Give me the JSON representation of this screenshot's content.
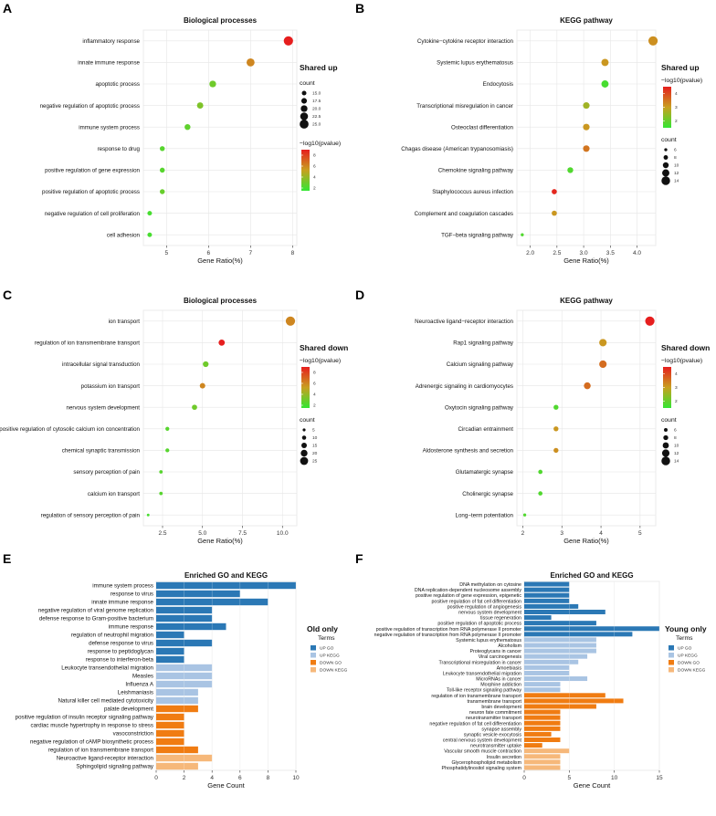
{
  "colors": {
    "grad_low": "#33e633",
    "grad_mid": "#c8a020",
    "grad_high": "#e61e1e",
    "up_go": "#2b78b5",
    "up_kegg": "#a9c4e3",
    "down_go": "#f07c12",
    "down_kegg": "#f6b87a",
    "grid": "#e6e6e6"
  },
  "panels": [
    {
      "letter": "A"
    },
    {
      "letter": "B"
    },
    {
      "letter": "C"
    },
    {
      "letter": "D"
    },
    {
      "letter": "E"
    },
    {
      "letter": "F"
    }
  ],
  "chart_data": [
    {
      "id": "A",
      "type": "scatter",
      "title": "Biological processes",
      "xlabel": "Gene Ratio(%)",
      "ylabel": "",
      "xlim": [
        4.45,
        8.1
      ],
      "xticks": [
        5,
        6,
        7,
        8
      ],
      "legend_title": "Shared up",
      "size_legend": {
        "title": "count",
        "values": [
          15.0,
          17.5,
          20.0,
          22.5,
          25.0
        ],
        "labels": [
          "15.0",
          "17.5",
          "20.0",
          "22.5",
          "25.0"
        ],
        "range": [
          10,
          26
        ]
      },
      "color_legend": {
        "title": "−log10(pvalue)",
        "ticks": [
          2,
          4,
          6,
          8
        ],
        "range": [
          1.5,
          9
        ]
      },
      "points": [
        {
          "term": "inflammatory response",
          "x": 7.9,
          "count": 26,
          "pval": 9.0
        },
        {
          "term": "innate immune response",
          "x": 7.0,
          "count": 23,
          "pval": 6.0
        },
        {
          "term": "apoptotic process",
          "x": 6.1,
          "count": 20,
          "pval": 3.0
        },
        {
          "term": "negative regulation of apoptotic process",
          "x": 5.8,
          "count": 19,
          "pval": 3.4
        },
        {
          "term": "immune system process",
          "x": 5.5,
          "count": 18,
          "pval": 2.6
        },
        {
          "term": "response to drug",
          "x": 4.9,
          "count": 16,
          "pval": 2.4
        },
        {
          "term": "positive regulation of gene expression",
          "x": 4.9,
          "count": 16,
          "pval": 2.4
        },
        {
          "term": "positive regulation of apoptotic process",
          "x": 4.9,
          "count": 16,
          "pval": 2.8
        },
        {
          "term": "negative regulation of cell proliferation",
          "x": 4.6,
          "count": 15,
          "pval": 2.0
        },
        {
          "term": "cell adhesion",
          "x": 4.6,
          "count": 15,
          "pval": 2.0
        }
      ]
    },
    {
      "id": "B",
      "type": "scatter",
      "title": "KEGG pathway",
      "xlabel": "Gene Ratio(%)",
      "ylabel": "",
      "xlim": [
        1.75,
        4.35
      ],
      "xticks": [
        2.0,
        2.5,
        3.0,
        3.5,
        4.0
      ],
      "xticklabels": [
        "2.0",
        "2.5",
        "3.0",
        "3.5",
        "4.0"
      ],
      "legend_title": "Shared up",
      "size_legend": {
        "title": "count",
        "values": [
          6,
          8,
          10,
          12,
          14
        ],
        "labels": [
          "6",
          "8",
          "10",
          "12",
          "14"
        ],
        "range": [
          5,
          15
        ]
      },
      "color_legend": {
        "title": "−log10(pvalue)",
        "ticks": [
          2,
          3,
          4
        ],
        "range": [
          1.5,
          4.5
        ]
      },
      "points": [
        {
          "term": "Cytokine−cytokine receptor interaction",
          "x": 4.3,
          "count": 15,
          "pval": 3.2
        },
        {
          "term": "Systemic lupus erythematosus",
          "x": 3.4,
          "count": 12,
          "pval": 3.1
        },
        {
          "term": "Endocytosis",
          "x": 3.4,
          "count": 12,
          "pval": 1.7
        },
        {
          "term": "Transcriptional misregulation in cancer",
          "x": 3.05,
          "count": 11,
          "pval": 2.6
        },
        {
          "term": "Osteoclast differentiation",
          "x": 3.05,
          "count": 11,
          "pval": 3.1
        },
        {
          "term": "Chagas disease (American trypanosomiasis)",
          "x": 3.05,
          "count": 11,
          "pval": 3.5
        },
        {
          "term": "Chemokine signaling pathway",
          "x": 2.75,
          "count": 10,
          "pval": 1.8
        },
        {
          "term": "Staphylococcus aureus infection",
          "x": 2.45,
          "count": 9,
          "pval": 4.4
        },
        {
          "term": "Complement and coagulation cascades",
          "x": 2.45,
          "count": 9,
          "pval": 3.1
        },
        {
          "term": "TGF−beta signaling pathway",
          "x": 1.85,
          "count": 6,
          "pval": 1.8
        }
      ]
    },
    {
      "id": "C",
      "type": "scatter",
      "title": "Biological processes",
      "xlabel": "Gene Ratio(%)",
      "ylabel": "",
      "xlim": [
        1.3,
        10.9
      ],
      "xticks": [
        2.5,
        5.0,
        7.5,
        10.0
      ],
      "xticklabels": [
        "2.5",
        "5.0",
        "7.5",
        "10.0"
      ],
      "legend_title": "Shared down",
      "size_legend": {
        "title": "count",
        "values": [
          5,
          10,
          15,
          20,
          25
        ],
        "labels": [
          "5",
          "10",
          "15",
          "20",
          "25"
        ],
        "range": [
          3,
          30
        ]
      },
      "color_legend": {
        "title": "−log10(pvalue)",
        "ticks": [
          2,
          4,
          6,
          8
        ],
        "range": [
          1.5,
          9
        ]
      },
      "points": [
        {
          "term": "ion transport",
          "x": 10.5,
          "count": 30,
          "pval": 6.0
        },
        {
          "term": "regulation of ion transmembrane transport",
          "x": 6.2,
          "count": 18,
          "pval": 9.0
        },
        {
          "term": "intracellular signal transduction",
          "x": 5.2,
          "count": 16,
          "pval": 3.0
        },
        {
          "term": "potassium ion transport",
          "x": 5.0,
          "count": 15,
          "pval": 6.0
        },
        {
          "term": "nervous system development",
          "x": 4.5,
          "count": 14,
          "pval": 3.0
        },
        {
          "term": "positive regulation of cytosolic calcium ion concentration",
          "x": 2.8,
          "count": 9,
          "pval": 2.4
        },
        {
          "term": "chemical synaptic transmission",
          "x": 2.8,
          "count": 9,
          "pval": 2.4
        },
        {
          "term": "sensory perception of pain",
          "x": 2.4,
          "count": 7,
          "pval": 2.4
        },
        {
          "term": "calcium ion transport",
          "x": 2.4,
          "count": 7,
          "pval": 2.4
        },
        {
          "term": "regulation of sensory perception of pain",
          "x": 1.6,
          "count": 4,
          "pval": 2.0
        }
      ]
    },
    {
      "id": "D",
      "type": "scatter",
      "title": "KEGG pathway",
      "xlabel": "Gene Ratio(%)",
      "ylabel": "",
      "xlim": [
        1.85,
        5.4
      ],
      "xticks": [
        2,
        3,
        4,
        5
      ],
      "legend_title": "Shared down",
      "size_legend": {
        "title": "count",
        "values": [
          6,
          8,
          10,
          12,
          14
        ],
        "labels": [
          "6",
          "8",
          "10",
          "12",
          "14"
        ],
        "range": [
          4,
          15
        ]
      },
      "color_legend": {
        "title": "−log10(pvalue)",
        "ticks": [
          2,
          3,
          4
        ],
        "range": [
          1.5,
          4.5
        ]
      },
      "points": [
        {
          "term": "Neuroactive ligand−receptor interaction",
          "x": 5.25,
          "count": 15,
          "pval": 4.5
        },
        {
          "term": "Rap1 signaling pathway",
          "x": 4.05,
          "count": 12,
          "pval": 3.1
        },
        {
          "term": "Calcium signaling pathway",
          "x": 4.05,
          "count": 12,
          "pval": 3.6
        },
        {
          "term": "Adrenergic signaling in cardiomyocytes",
          "x": 3.65,
          "count": 11,
          "pval": 3.6
        },
        {
          "term": "Oxytocin signaling pathway",
          "x": 2.85,
          "count": 8,
          "pval": 1.8
        },
        {
          "term": "Circadian entrainment",
          "x": 2.85,
          "count": 8,
          "pval": 3.1
        },
        {
          "term": "Aldosterone synthesis and secretion",
          "x": 2.85,
          "count": 8,
          "pval": 3.2
        },
        {
          "term": "Glutamatergic synapse",
          "x": 2.45,
          "count": 7,
          "pval": 1.8
        },
        {
          "term": "Cholinergic synapse",
          "x": 2.45,
          "count": 7,
          "pval": 1.8
        },
        {
          "term": "Long−term potentiation",
          "x": 2.05,
          "count": 5,
          "pval": 1.8
        }
      ]
    },
    {
      "id": "E",
      "type": "bar",
      "title": "Enriched GO and KEGG",
      "xlabel": "Gene Count",
      "ylabel": "",
      "xlim": [
        0,
        10
      ],
      "xticks": [
        0,
        2,
        4,
        6,
        8,
        10
      ],
      "legend_title": "Old only",
      "legend_sub": "Terms",
      "legend_entries": [
        {
          "key": "up_go",
          "label": "UP GO"
        },
        {
          "key": "up_kegg",
          "label": "UP KEGG"
        },
        {
          "key": "down_go",
          "label": "DOWN GO"
        },
        {
          "key": "down_kegg",
          "label": "DOWN KEGG"
        }
      ],
      "bars": [
        {
          "term": "immune system process",
          "value": 10,
          "group": "up_go"
        },
        {
          "term": "response to virus",
          "value": 6,
          "group": "up_go"
        },
        {
          "term": "innate immune response",
          "value": 8,
          "group": "up_go"
        },
        {
          "term": "negative regulation of viral genome replication",
          "value": 4,
          "group": "up_go"
        },
        {
          "term": "defense response to Gram-positive bacterium",
          "value": 4,
          "group": "up_go"
        },
        {
          "term": "immune response",
          "value": 5,
          "group": "up_go"
        },
        {
          "term": "regulation of neutrophil migration",
          "value": 2,
          "group": "up_go"
        },
        {
          "term": "defense response to virus",
          "value": 4,
          "group": "up_go"
        },
        {
          "term": "response to peptidoglycan",
          "value": 2,
          "group": "up_go"
        },
        {
          "term": "response to interferon-beta",
          "value": 2,
          "group": "up_go"
        },
        {
          "term": "Leukocyte transendothelial migration",
          "value": 4,
          "group": "up_kegg"
        },
        {
          "term": "Measles",
          "value": 4,
          "group": "up_kegg"
        },
        {
          "term": "Influenza A",
          "value": 4,
          "group": "up_kegg"
        },
        {
          "term": "Leishmaniasis",
          "value": 3,
          "group": "up_kegg"
        },
        {
          "term": "Natural killer cell mediated cytotoxicity",
          "value": 3,
          "group": "up_kegg"
        },
        {
          "term": "palate development",
          "value": 3,
          "group": "down_go"
        },
        {
          "term": "positive regulation of insulin receptor signaling pathway",
          "value": 2,
          "group": "down_go"
        },
        {
          "term": "cardiac muscle hypertrophy in response to stress",
          "value": 2,
          "group": "down_go"
        },
        {
          "term": "vasoconstriction",
          "value": 2,
          "group": "down_go"
        },
        {
          "term": "negative regulation of cAMP biosynthetic process",
          "value": 2,
          "group": "down_go"
        },
        {
          "term": "regulation of ion transmembrane transport",
          "value": 3,
          "group": "down_go"
        },
        {
          "term": "Neuroactive ligand-receptor interaction",
          "value": 4,
          "group": "down_kegg"
        },
        {
          "term": "Sphingolipid signaling pathway",
          "value": 3,
          "group": "down_kegg"
        }
      ]
    },
    {
      "id": "F",
      "type": "bar",
      "title": "Enriched GO and KEGG",
      "xlabel": "Gene Count",
      "ylabel": "",
      "xlim": [
        0,
        15
      ],
      "xticks": [
        0,
        5,
        10,
        15
      ],
      "legend_title": "Young only",
      "legend_sub": "Terms",
      "legend_entries": [
        {
          "key": "up_go",
          "label": "UP GO"
        },
        {
          "key": "up_kegg",
          "label": "UP KEGG"
        },
        {
          "key": "down_go",
          "label": "DOWN GO"
        },
        {
          "key": "down_kegg",
          "label": "DOWN KEGG"
        }
      ],
      "bars": [
        {
          "term": "DNA methylation on cytosine",
          "value": 5,
          "group": "up_go"
        },
        {
          "term": "DNA replication-dependent nucleosome assembly",
          "value": 5,
          "group": "up_go"
        },
        {
          "term": "positive regulation of gene expression, epigenetic",
          "value": 5,
          "group": "up_go"
        },
        {
          "term": "positive regulation of fat cell differentiation",
          "value": 5,
          "group": "up_go"
        },
        {
          "term": "positive regulation of angiogenesis",
          "value": 6,
          "group": "up_go"
        },
        {
          "term": "nervous system development",
          "value": 9,
          "group": "up_go"
        },
        {
          "term": "tissue regeneration",
          "value": 3,
          "group": "up_go"
        },
        {
          "term": "positive regulation of apoptotic process",
          "value": 8,
          "group": "up_go"
        },
        {
          "term": "positive regulation of transcription from RNA polymerase II promoter",
          "value": 15,
          "group": "up_go"
        },
        {
          "term": "negative regulation of transcription from RNA polymerase II promoter",
          "value": 12,
          "group": "up_go"
        },
        {
          "term": "Systemic lupus erythematosus",
          "value": 8,
          "group": "up_kegg"
        },
        {
          "term": "Alcoholism",
          "value": 8,
          "group": "up_kegg"
        },
        {
          "term": "Proteoglycans in cancer",
          "value": 8,
          "group": "up_kegg"
        },
        {
          "term": "Viral carcinogenesis",
          "value": 7,
          "group": "up_kegg"
        },
        {
          "term": "Transcriptional misregulation in cancer",
          "value": 6,
          "group": "up_kegg"
        },
        {
          "term": "Amoebiasis",
          "value": 5,
          "group": "up_kegg"
        },
        {
          "term": "Leukocyte transendothelial migration",
          "value": 5,
          "group": "up_kegg"
        },
        {
          "term": "MicroRNAs in cancer",
          "value": 7,
          "group": "up_kegg"
        },
        {
          "term": "Morphine addiction",
          "value": 4,
          "group": "up_kegg"
        },
        {
          "term": "Toll-like receptor signaling pathway",
          "value": 4,
          "group": "up_kegg"
        },
        {
          "term": "regulation of ion transmembrane transport",
          "value": 9,
          "group": "down_go"
        },
        {
          "term": "transmembrane transport",
          "value": 11,
          "group": "down_go"
        },
        {
          "term": "brain development",
          "value": 8,
          "group": "down_go"
        },
        {
          "term": "neuron fate commitment",
          "value": 4,
          "group": "down_go"
        },
        {
          "term": "neurotransmitter transport",
          "value": 4,
          "group": "down_go"
        },
        {
          "term": "negative regulation of fat cell differentiation",
          "value": 4,
          "group": "down_go"
        },
        {
          "term": "synapse assembly",
          "value": 4,
          "group": "down_go"
        },
        {
          "term": "synaptic vesicle exocytosis",
          "value": 3,
          "group": "down_go"
        },
        {
          "term": "central nervous system development",
          "value": 4,
          "group": "down_go"
        },
        {
          "term": "neurotransmitter uptake",
          "value": 2,
          "group": "down_go"
        },
        {
          "term": "Vascular smooth muscle contraction",
          "value": 5,
          "group": "down_kegg"
        },
        {
          "term": "Insulin secretion",
          "value": 4,
          "group": "down_kegg"
        },
        {
          "term": "Glycerophospholipid metabolism",
          "value": 4,
          "group": "down_kegg"
        },
        {
          "term": "Phosphatidylinositol signaling system",
          "value": 4,
          "group": "down_kegg"
        }
      ]
    }
  ]
}
